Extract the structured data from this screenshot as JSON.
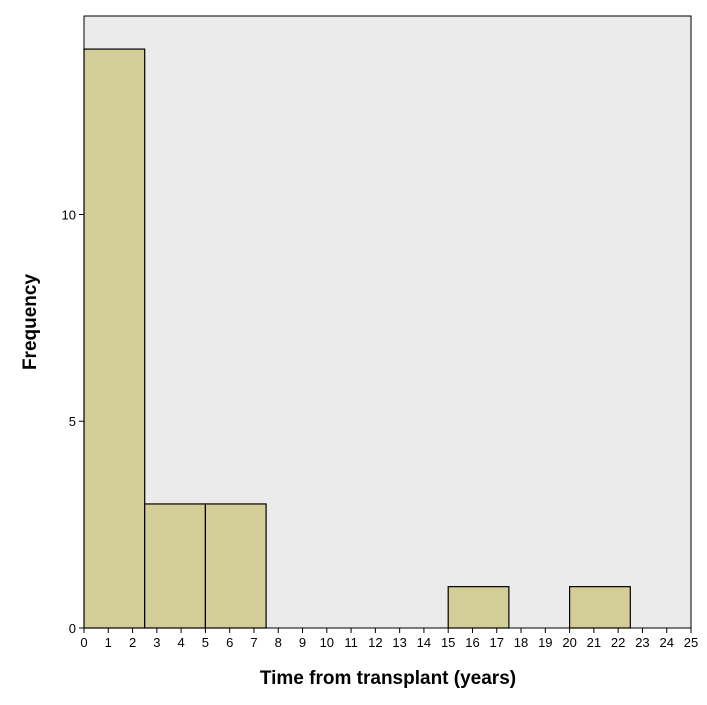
{
  "chart_data": {
    "type": "histogram",
    "x_label": "Time from transplant (years)",
    "y_label": "Frequency",
    "bins": [
      0,
      2.5,
      5,
      7.5,
      10,
      12.5,
      15,
      17.5,
      20,
      22.5,
      25
    ],
    "values": [
      14,
      3,
      3,
      0,
      0,
      0,
      1,
      0,
      1,
      0
    ],
    "color": "#d3ce97",
    "background": "#ebebeb",
    "xlim": [
      0,
      25
    ],
    "xticks": [
      0,
      1,
      2,
      3,
      4,
      5,
      6,
      7,
      8,
      9,
      10,
      11,
      12,
      13,
      14,
      15,
      16,
      17,
      18,
      19,
      20,
      21,
      22,
      23,
      24,
      25
    ],
    "ylim": [
      0,
      14.8
    ],
    "yticks": [
      0,
      5,
      10
    ]
  }
}
